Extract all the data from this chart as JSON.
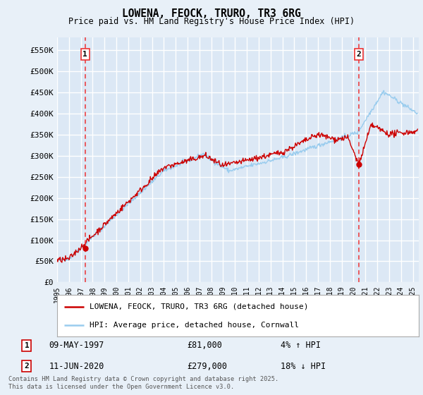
{
  "title": "LOWENA, FEOCK, TRURO, TR3 6RG",
  "subtitle": "Price paid vs. HM Land Registry's House Price Index (HPI)",
  "ylabel_values": [
    "£0",
    "£50K",
    "£100K",
    "£150K",
    "£200K",
    "£250K",
    "£300K",
    "£350K",
    "£400K",
    "£450K",
    "£500K",
    "£550K"
  ],
  "ylim": [
    0,
    580000
  ],
  "yticks": [
    0,
    50000,
    100000,
    150000,
    200000,
    250000,
    300000,
    350000,
    400000,
    450000,
    500000,
    550000
  ],
  "xlim_start": 1995.0,
  "xlim_end": 2025.5,
  "background_color": "#e8f0f8",
  "plot_bg_color": "#dce8f5",
  "grid_color": "#ffffff",
  "red_line_color": "#cc0000",
  "blue_line_color": "#99ccee",
  "dashed_line_color": "#ee3333",
  "marker1_year": 1997.37,
  "marker1_value": 81000,
  "marker1_label": "1",
  "marker1_date": "09-MAY-1997",
  "marker1_price": "£81,000",
  "marker1_hpi": "4% ↑ HPI",
  "marker2_year": 2020.45,
  "marker2_value": 279000,
  "marker2_label": "2",
  "marker2_date": "11-JUN-2020",
  "marker2_price": "£279,000",
  "marker2_hpi": "18% ↓ HPI",
  "legend_line1": "LOWENA, FEOCK, TRURO, TR3 6RG (detached house)",
  "legend_line2": "HPI: Average price, detached house, Cornwall",
  "footer": "Contains HM Land Registry data © Crown copyright and database right 2025.\nThis data is licensed under the Open Government Licence v3.0.",
  "xtick_years": [
    1995,
    1996,
    1997,
    1998,
    1999,
    2000,
    2001,
    2002,
    2003,
    2004,
    2005,
    2006,
    2007,
    2008,
    2009,
    2010,
    2011,
    2012,
    2013,
    2014,
    2015,
    2016,
    2017,
    2018,
    2019,
    2020,
    2021,
    2022,
    2023,
    2024,
    2025
  ]
}
